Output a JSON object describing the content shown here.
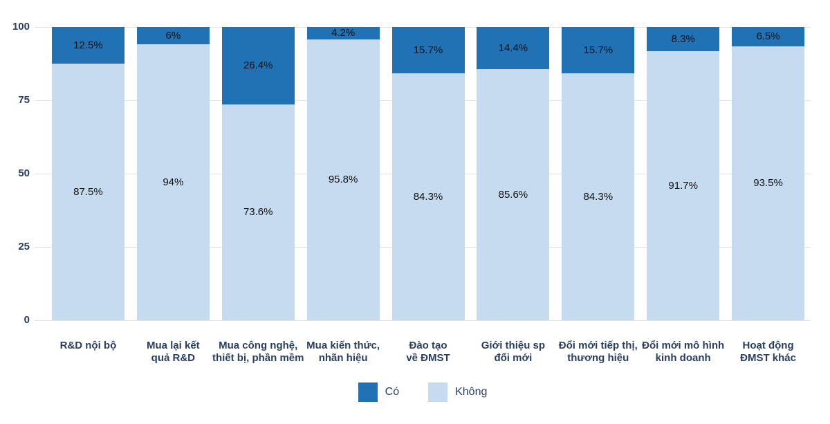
{
  "chart_data": {
    "type": "bar",
    "stacked": true,
    "orientation": "vertical",
    "title": "",
    "categories": [
      "R&D nội bộ",
      "Mua lại kết\nquả R&D",
      "Mua công nghệ,\nthiết bị, phần mềm",
      "Mua kiến thức,\nnhãn hiệu",
      "Đào tạo\nvề ĐMST",
      "Giới thiệu sp\nđổi mới",
      "Đổi mới tiếp thị,\nthương hiệu",
      "Đổi mới mô hình\nkinh doanh",
      "Hoạt động\nĐMST khác"
    ],
    "series": [
      {
        "name": "Có",
        "color": "#2171b5",
        "values": [
          12.5,
          6,
          26.4,
          4.2,
          15.7,
          14.4,
          15.7,
          8.3,
          6.5
        ]
      },
      {
        "name": "Không",
        "color": "#c6dbef",
        "values": [
          87.5,
          94,
          73.6,
          95.8,
          84.3,
          85.6,
          84.3,
          91.7,
          93.5
        ]
      }
    ],
    "value_suffix": "%",
    "y_ticks": [
      0,
      25,
      50,
      75,
      100
    ],
    "ylim": [
      0,
      100
    ],
    "grid": true,
    "legend_position": "bottom-center"
  }
}
